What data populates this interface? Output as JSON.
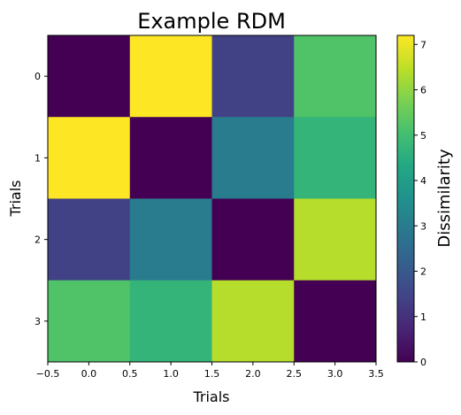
{
  "chart_data": {
    "type": "heatmap",
    "title": "Example RDM",
    "xlabel": "Trials",
    "ylabel": "Trials",
    "colorbar_label": "Dissimilarity",
    "colormap": "viridis",
    "xlim": [
      -0.5,
      3.5
    ],
    "ylim": [
      3.5,
      -0.5
    ],
    "xticks": [
      -0.5,
      0.0,
      0.5,
      1.0,
      1.5,
      2.0,
      2.5,
      3.0,
      3.5
    ],
    "xtick_labels": [
      "−0.5",
      "0.0",
      "0.5",
      "1.0",
      "1.5",
      "2.0",
      "2.5",
      "3.0",
      "3.5"
    ],
    "yticks": [
      0,
      1,
      2,
      3
    ],
    "ytick_labels": [
      "0",
      "1",
      "2",
      "3"
    ],
    "colorbar_range": [
      0,
      7.2
    ],
    "colorbar_ticks": [
      0,
      1,
      2,
      3,
      4,
      5,
      6,
      7
    ],
    "colorbar_tick_labels": [
      "0",
      "1",
      "2",
      "3",
      "4",
      "5",
      "6",
      "7"
    ],
    "matrix": [
      [
        0.0,
        7.2,
        1.4,
        5.2
      ],
      [
        7.2,
        0.0,
        3.0,
        4.7
      ],
      [
        1.4,
        3.0,
        0.0,
        6.4
      ],
      [
        5.2,
        4.7,
        6.4,
        0.0
      ]
    ]
  }
}
